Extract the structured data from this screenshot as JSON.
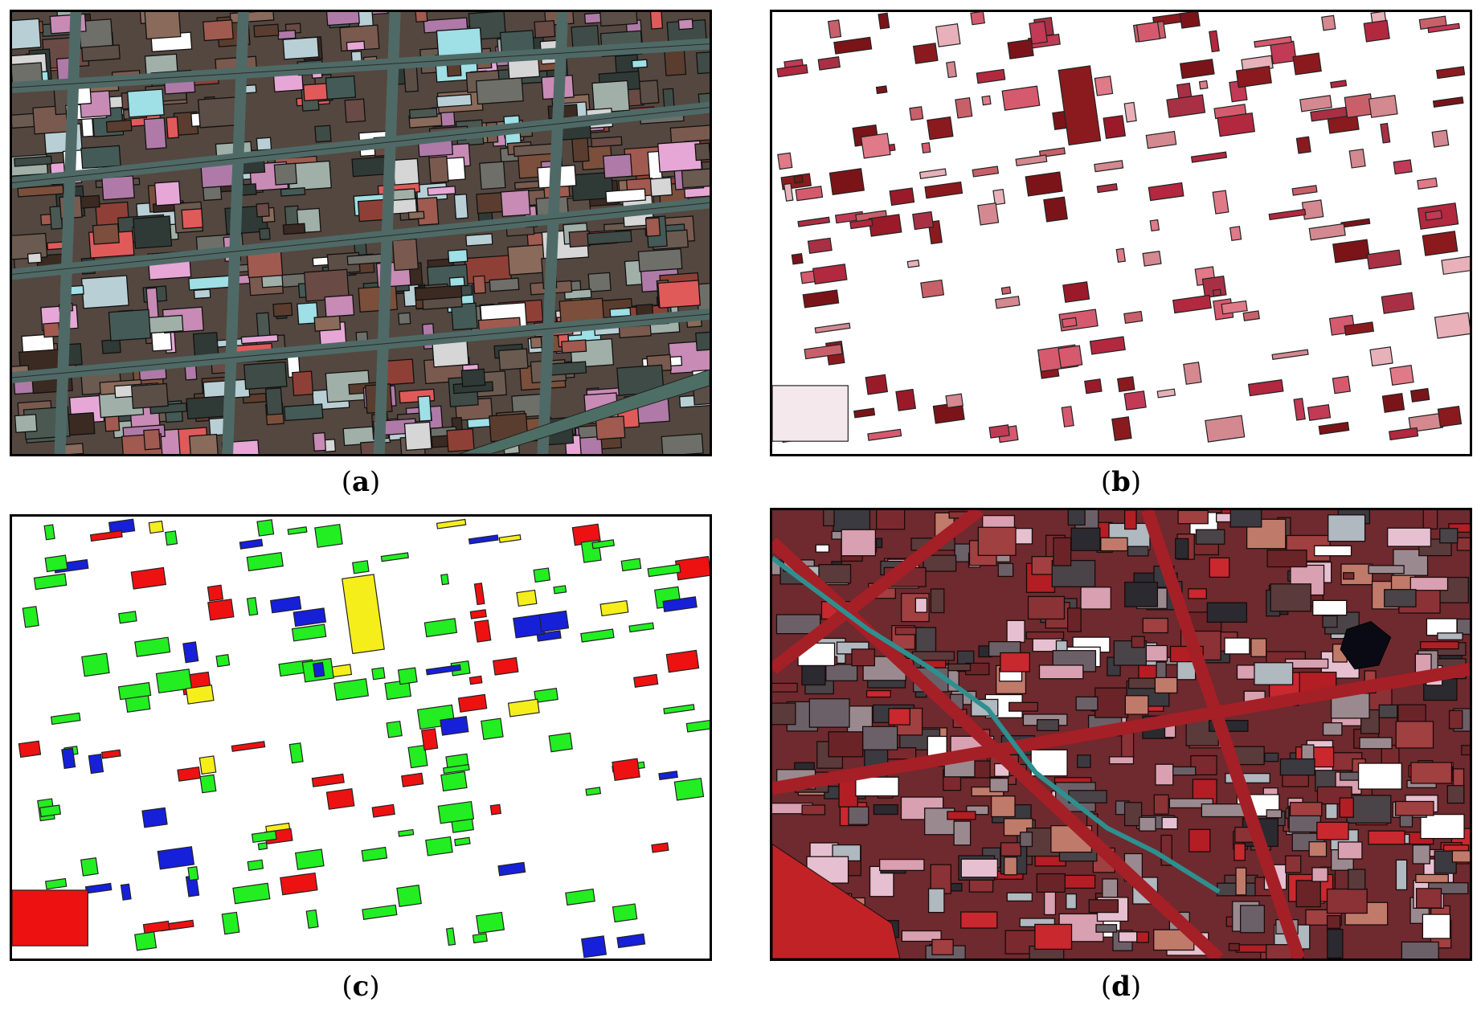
{
  "figure": {
    "panels": [
      {
        "id": "a",
        "caption_open": "(",
        "caption_letter": "a",
        "caption_close": ")"
      },
      {
        "id": "b",
        "caption_open": "(",
        "caption_letter": "b",
        "caption_close": ")"
      },
      {
        "id": "c",
        "caption_open": "(",
        "caption_letter": "c",
        "caption_close": ")"
      },
      {
        "id": "d",
        "caption_open": "(",
        "caption_letter": "d",
        "caption_close": ")"
      }
    ],
    "colors": {
      "segment_outline": "#000000",
      "building_green": "#22ee22",
      "building_yellow": "#f5ee1a",
      "building_blue": "#1620d8",
      "building_red": "#ee1111",
      "building_crimson": "#b2283f",
      "water_teal": "#2f8f8f"
    }
  }
}
